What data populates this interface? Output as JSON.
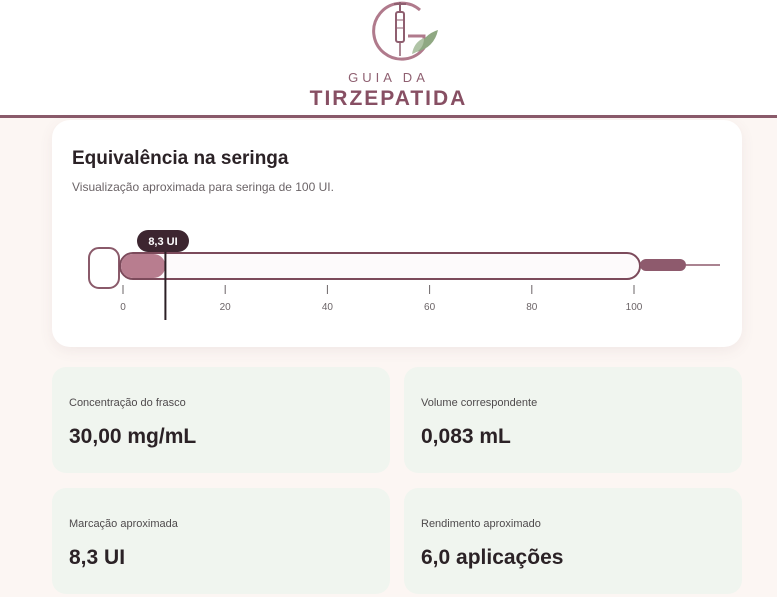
{
  "brand": {
    "line1": "GUIA DA",
    "line2": "TIRZEPATIDA"
  },
  "card": {
    "title": "Equivalência na seringa",
    "subtitle": "Visualização aproximada para seringa de 100 UI.",
    "marker_label": "8,3 UI",
    "marker_value": 8.3,
    "scale_max": 100,
    "ticks": [
      {
        "value": 0,
        "label": "0"
      },
      {
        "value": 20,
        "label": "20"
      },
      {
        "value": 40,
        "label": "40"
      },
      {
        "value": 60,
        "label": "60"
      },
      {
        "value": 80,
        "label": "80"
      },
      {
        "value": 100,
        "label": "100"
      }
    ]
  },
  "stats": [
    {
      "label": "Concentração do frasco",
      "value": "30,00 mg/mL"
    },
    {
      "label": "Volume correspondente",
      "value": "0,083 mL"
    },
    {
      "label": "Marcação aproximada",
      "value": "8,3 UI"
    },
    {
      "label": "Rendimento aproximado",
      "value": "6,0 aplicações"
    }
  ],
  "colors": {
    "brand": "#874f63",
    "fill": "#b87d8f",
    "card_bg": "#ffffff",
    "stat_bg": "#f0f5ef",
    "marker_bg": "#3d2630",
    "leaf": "#8fa882"
  }
}
